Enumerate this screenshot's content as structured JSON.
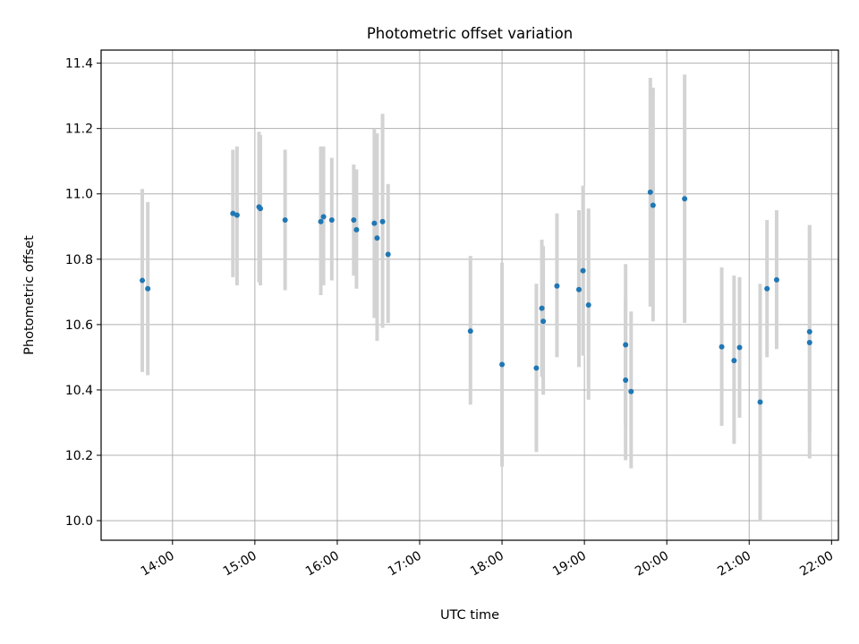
{
  "chart_data": {
    "type": "scatter",
    "title": "Photometric offset variation",
    "xlabel": "UTC time",
    "ylabel": "Photometric offset",
    "xlim": [
      "13:08",
      "22:05"
    ],
    "ylim": [
      9.94,
      11.44
    ],
    "x_ticks": [
      "14:00",
      "15:00",
      "16:00",
      "17:00",
      "18:00",
      "19:00",
      "20:00",
      "21:00",
      "22:00"
    ],
    "y_ticks": [
      10.0,
      10.2,
      10.4,
      10.6,
      10.8,
      11.0,
      11.2,
      11.4
    ],
    "y_tick_labels": [
      "10.0",
      "10.2",
      "10.4",
      "10.6",
      "10.8",
      "11.0",
      "11.2",
      "11.4"
    ],
    "grid": true,
    "marker_color": "#1f77b4",
    "errorbar_color": "#d3d3d3",
    "points": [
      {
        "x": "13:38",
        "y": 10.735,
        "ylow": 10.455,
        "yhigh": 11.015
      },
      {
        "x": "13:42",
        "y": 10.71,
        "ylow": 10.445,
        "yhigh": 10.975
      },
      {
        "x": "14:44",
        "y": 10.94,
        "ylow": 10.745,
        "yhigh": 11.135
      },
      {
        "x": "14:47",
        "y": 10.935,
        "ylow": 10.72,
        "yhigh": 11.145
      },
      {
        "x": "15:03",
        "y": 10.96,
        "ylow": 10.73,
        "yhigh": 11.19
      },
      {
        "x": "15:04",
        "y": 10.955,
        "ylow": 10.72,
        "yhigh": 11.18
      },
      {
        "x": "15:22",
        "y": 10.92,
        "ylow": 10.705,
        "yhigh": 11.135
      },
      {
        "x": "15:48",
        "y": 10.915,
        "ylow": 10.69,
        "yhigh": 11.145
      },
      {
        "x": "15:50",
        "y": 10.93,
        "ylow": 10.72,
        "yhigh": 11.145
      },
      {
        "x": "15:56",
        "y": 10.92,
        "ylow": 10.735,
        "yhigh": 11.11
      },
      {
        "x": "16:12",
        "y": 10.92,
        "ylow": 10.75,
        "yhigh": 11.09
      },
      {
        "x": "16:14",
        "y": 10.89,
        "ylow": 10.71,
        "yhigh": 11.075
      },
      {
        "x": "16:27",
        "y": 10.91,
        "ylow": 10.62,
        "yhigh": 11.2
      },
      {
        "x": "16:29",
        "y": 10.865,
        "ylow": 10.55,
        "yhigh": 11.185
      },
      {
        "x": "16:33",
        "y": 10.915,
        "ylow": 10.59,
        "yhigh": 11.245
      },
      {
        "x": "16:37",
        "y": 10.815,
        "ylow": 10.605,
        "yhigh": 11.03
      },
      {
        "x": "17:37",
        "y": 10.58,
        "ylow": 10.355,
        "yhigh": 10.81
      },
      {
        "x": "18:00",
        "y": 10.478,
        "ylow": 10.165,
        "yhigh": 10.79
      },
      {
        "x": "18:25",
        "y": 10.467,
        "ylow": 10.21,
        "yhigh": 10.725
      },
      {
        "x": "18:29",
        "y": 10.65,
        "ylow": 10.44,
        "yhigh": 10.86
      },
      {
        "x": "18:30",
        "y": 10.61,
        "ylow": 10.385,
        "yhigh": 10.84
      },
      {
        "x": "18:40",
        "y": 10.718,
        "ylow": 10.5,
        "yhigh": 10.94
      },
      {
        "x": "18:56",
        "y": 10.707,
        "ylow": 10.47,
        "yhigh": 10.95
      },
      {
        "x": "18:59",
        "y": 10.765,
        "ylow": 10.505,
        "yhigh": 11.025
      },
      {
        "x": "19:03",
        "y": 10.66,
        "ylow": 10.37,
        "yhigh": 10.955
      },
      {
        "x": "19:30",
        "y": 10.538,
        "ylow": 10.29,
        "yhigh": 10.785
      },
      {
        "x": "19:30",
        "y": 10.43,
        "ylow": 10.185,
        "yhigh": 10.68
      },
      {
        "x": "19:34",
        "y": 10.395,
        "ylow": 10.16,
        "yhigh": 10.64
      },
      {
        "x": "19:48",
        "y": 11.005,
        "ylow": 10.655,
        "yhigh": 11.355
      },
      {
        "x": "19:50",
        "y": 10.965,
        "ylow": 10.61,
        "yhigh": 11.325
      },
      {
        "x": "20:13",
        "y": 10.985,
        "ylow": 10.605,
        "yhigh": 11.365
      },
      {
        "x": "20:40",
        "y": 10.532,
        "ylow": 10.29,
        "yhigh": 10.775
      },
      {
        "x": "20:49",
        "y": 10.49,
        "ylow": 10.235,
        "yhigh": 10.75
      },
      {
        "x": "20:53",
        "y": 10.53,
        "ylow": 10.315,
        "yhigh": 10.745
      },
      {
        "x": "21:08",
        "y": 10.363,
        "ylow": 10.0,
        "yhigh": 10.725
      },
      {
        "x": "21:13",
        "y": 10.71,
        "ylow": 10.5,
        "yhigh": 10.92
      },
      {
        "x": "21:20",
        "y": 10.737,
        "ylow": 10.525,
        "yhigh": 10.95
      },
      {
        "x": "21:44",
        "y": 10.578,
        "ylow": 10.27,
        "yhigh": 10.905
      },
      {
        "x": "21:44",
        "y": 10.545,
        "ylow": 10.19,
        "yhigh": 10.905
      }
    ]
  }
}
